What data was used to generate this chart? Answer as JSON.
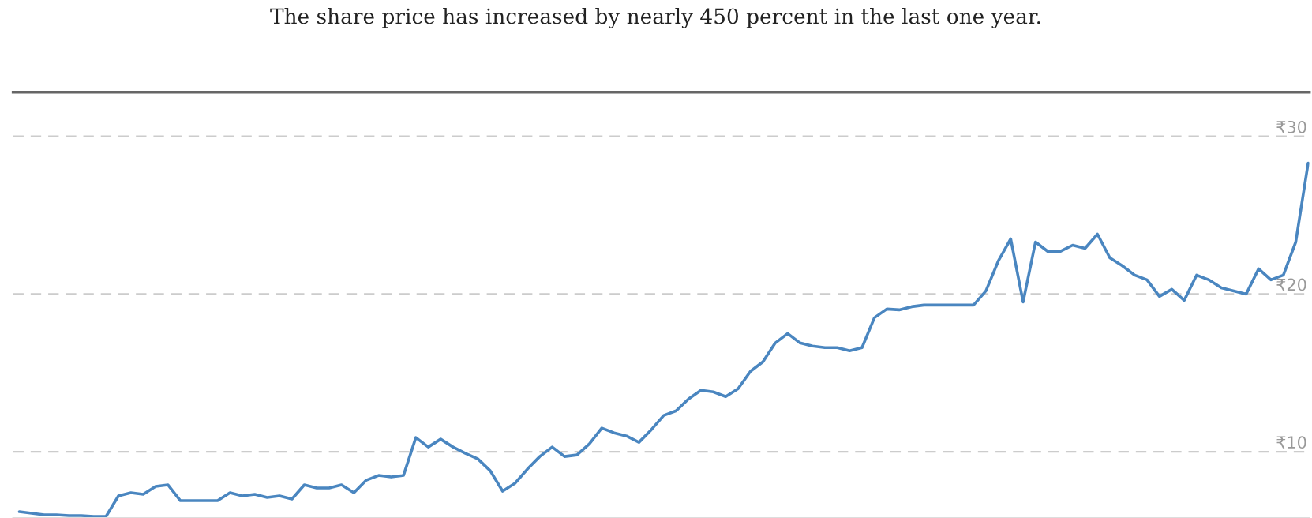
{
  "chart_data": {
    "type": "line",
    "title": "The share price has increased by nearly 450 percent in the last one year.",
    "categories": [
      null,
      null,
      null,
      null,
      null,
      null,
      null,
      null,
      null,
      null,
      null,
      null,
      null,
      null,
      null,
      null,
      null,
      null,
      null,
      null,
      null,
      null,
      null,
      null,
      null,
      null,
      null,
      null,
      null,
      null,
      null,
      null,
      null,
      null,
      null,
      null,
      null,
      null,
      null,
      null,
      null,
      null,
      null,
      null,
      null,
      null,
      null,
      null,
      null,
      null,
      null,
      null,
      null,
      null,
      null,
      null,
      null,
      null,
      null,
      null,
      null,
      null,
      null,
      null,
      null,
      null,
      null,
      null,
      null,
      null,
      null,
      null,
      null,
      null,
      null,
      null,
      null,
      null,
      null,
      null,
      null,
      null,
      null,
      null,
      null,
      null,
      null,
      null,
      null,
      null,
      null,
      null,
      null,
      null,
      null,
      null,
      null,
      null,
      null,
      null,
      null,
      null,
      null,
      null,
      null
    ],
    "series": [
      {
        "color": "#4a86c0",
        "values": [
          6.2,
          6.1,
          6.0,
          6.0,
          5.95,
          5.95,
          5.9,
          5.9,
          7.2,
          7.4,
          7.3,
          7.8,
          7.9,
          6.9,
          6.9,
          6.9,
          6.9,
          7.4,
          7.2,
          7.3,
          7.1,
          7.2,
          7.0,
          7.9,
          7.7,
          7.7,
          7.9,
          7.4,
          8.2,
          8.5,
          8.4,
          8.5,
          10.9,
          10.3,
          10.8,
          10.3,
          9.9,
          9.55,
          8.8,
          7.5,
          8.0,
          8.9,
          9.7,
          10.3,
          9.7,
          9.8,
          10.5,
          11.5,
          11.2,
          11.0,
          10.6,
          11.4,
          12.3,
          12.6,
          13.35,
          13.9,
          13.8,
          13.5,
          14.0,
          15.1,
          15.7,
          16.9,
          17.5,
          16.9,
          16.7,
          16.6,
          16.6,
          16.4,
          16.6,
          18.5,
          19.05,
          19.0,
          19.2,
          19.3,
          19.3,
          19.3,
          19.3,
          19.3,
          20.2,
          22.1,
          23.5,
          19.5,
          23.3,
          22.7,
          22.7,
          23.1,
          22.9,
          23.8,
          22.3,
          21.8,
          21.2,
          20.9,
          19.85,
          20.3,
          19.6,
          21.2,
          20.9,
          20.4,
          20.2,
          20.0,
          21.6,
          20.9,
          21.2,
          23.3,
          28.3
        ]
      }
    ],
    "ylim": [
      5.8,
      32.8
    ],
    "yticks": [
      {
        "value": 10,
        "label": "₹10"
      },
      {
        "value": 20,
        "label": "₹20"
      },
      {
        "value": 30,
        "label": "₹30"
      }
    ],
    "tick_labels": "y",
    "grid": "y",
    "line_style": "solid",
    "marker": "none"
  }
}
